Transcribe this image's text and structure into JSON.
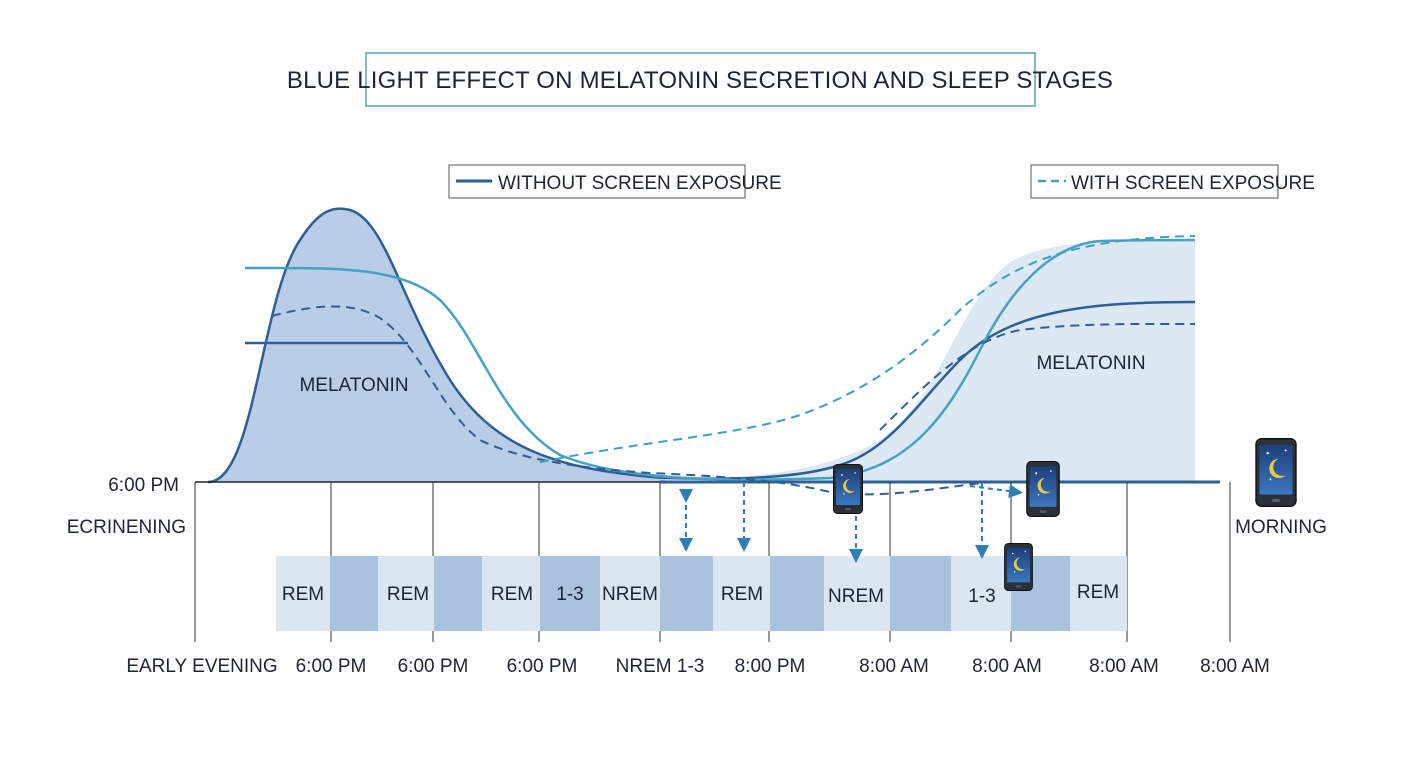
{
  "chart_data": {
    "type": "area",
    "title": "BLUE LIGHT EFFECT ON MELATONIN SECRETION AND SLEEP STAGES",
    "legend": [
      {
        "name": "WITHOUT SCREEN EXPOSURE",
        "style": "solid",
        "color": "#2f5f97"
      },
      {
        "name": "WITH SCREEN EXPOSURE",
        "style": "dashed",
        "color": "#3f9fc0"
      }
    ],
    "area_labels": [
      "MELATONIN",
      "MELATONIN"
    ],
    "y_labels": [
      "6:00 PM",
      "ECRINENING"
    ],
    "right_label": "MORNING",
    "x_tick_labels": [
      "EARLY EVENING",
      "6:00 PM",
      "6:00 PM",
      "6:00 PM",
      "NREM 1-3",
      "8:00 PM",
      "8:00 AM",
      "8:00 AM",
      "8:00 AM",
      "8:00 AM"
    ],
    "sleep_stages": [
      "REM",
      "REM",
      "REM",
      "1-3",
      "NREM",
      "REM",
      "NREM",
      "1-3",
      "REM"
    ],
    "colors": {
      "dark_line": "#2f5f97",
      "light_line": "#45a2c4",
      "fill": "#b9cde6",
      "fill_light": "#dce8f3",
      "stage_light": "#dbe6f2",
      "stage_dark": "#a9c3df"
    },
    "icons": [
      "tablet-moon-icon"
    ]
  }
}
